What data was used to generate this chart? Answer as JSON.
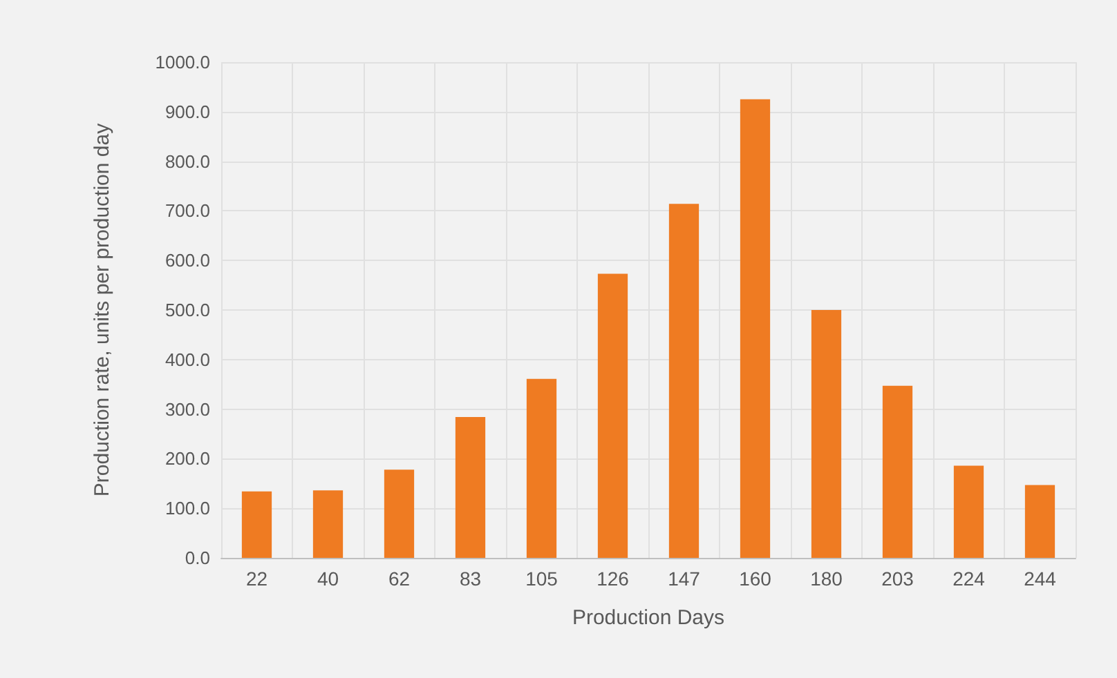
{
  "chart_data": {
    "type": "bar",
    "xlabel": "Production Days",
    "ylabel": "Production rate, units per production day",
    "categories": [
      "22",
      "40",
      "62",
      "83",
      "105",
      "126",
      "147",
      "160",
      "180",
      "203",
      "224",
      "244"
    ],
    "values": [
      134,
      136,
      178,
      284,
      361,
      573,
      714,
      925,
      500,
      347,
      186,
      147
    ],
    "color": "#ef7b22",
    "ylim": [
      0,
      1000
    ],
    "yticks": [
      {
        "value": 0,
        "label": "0.0"
      },
      {
        "value": 100,
        "label": "100.0"
      },
      {
        "value": 200,
        "label": "200.0"
      },
      {
        "value": 300,
        "label": "300.0"
      },
      {
        "value": 400,
        "label": "400.0"
      },
      {
        "value": 500,
        "label": "500.0"
      },
      {
        "value": 600,
        "label": "600.0"
      },
      {
        "value": 700,
        "label": "700.0"
      },
      {
        "value": 800,
        "label": "800.0"
      },
      {
        "value": 900,
        "label": "900.0"
      },
      {
        "value": 1000,
        "label": "1000.0"
      }
    ],
    "grid": true
  }
}
